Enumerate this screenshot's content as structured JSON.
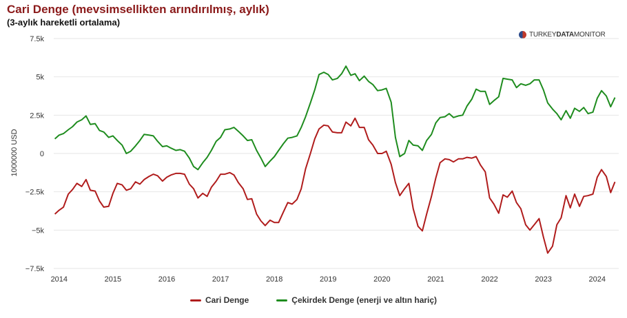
{
  "header": {
    "title": "Cari Denge (mevsimsellikten arındırılmış, aylık)",
    "subtitle": "(3-aylık hareketli ortalama)",
    "brand_prefix": "TURKEY",
    "brand_mid": "DATA",
    "brand_suffix": "MONITOR"
  },
  "chart_data": {
    "type": "line",
    "ylabel": "1000000 USD",
    "ylim": [
      -7500,
      7500
    ],
    "yticks": [
      -7500,
      -5000,
      -2500,
      0,
      2500,
      5000,
      7500
    ],
    "ytick_labels": [
      "−7.5k",
      "−5k",
      "−2.5k",
      "0",
      "2.5k",
      "5k",
      "7.5k"
    ],
    "xlim": [
      2013.9,
      2024.4
    ],
    "xticks": [
      2014,
      2015,
      2016,
      2017,
      2018,
      2019,
      2020,
      2021,
      2022,
      2023,
      2024
    ],
    "xtick_labels": [
      "2014",
      "2015",
      "2016",
      "2017",
      "2018",
      "2019",
      "2020",
      "2021",
      "2022",
      "2023",
      "2024"
    ],
    "grid": "horizontal",
    "legend_position": "bottom-center",
    "series": [
      {
        "name": "Cari Denge",
        "color": "#b01c1c",
        "points": [
          [
            2013.92,
            -3950
          ],
          [
            2014.0,
            -3700
          ],
          [
            2014.08,
            -3500
          ],
          [
            2014.17,
            -2650
          ],
          [
            2014.25,
            -2350
          ],
          [
            2014.33,
            -1950
          ],
          [
            2014.42,
            -2150
          ],
          [
            2014.5,
            -1700
          ],
          [
            2014.58,
            -2400
          ],
          [
            2014.67,
            -2450
          ],
          [
            2014.75,
            -3100
          ],
          [
            2014.83,
            -3500
          ],
          [
            2014.92,
            -3450
          ],
          [
            2015.0,
            -2600
          ],
          [
            2015.08,
            -1950
          ],
          [
            2015.17,
            -2050
          ],
          [
            2015.25,
            -2400
          ],
          [
            2015.33,
            -2300
          ],
          [
            2015.42,
            -1850
          ],
          [
            2015.5,
            -2000
          ],
          [
            2015.58,
            -1700
          ],
          [
            2015.67,
            -1500
          ],
          [
            2015.75,
            -1350
          ],
          [
            2015.83,
            -1450
          ],
          [
            2015.92,
            -1800
          ],
          [
            2016.0,
            -1550
          ],
          [
            2016.08,
            -1400
          ],
          [
            2016.17,
            -1300
          ],
          [
            2016.25,
            -1300
          ],
          [
            2016.33,
            -1350
          ],
          [
            2016.42,
            -2000
          ],
          [
            2016.5,
            -2300
          ],
          [
            2016.58,
            -2900
          ],
          [
            2016.67,
            -2600
          ],
          [
            2016.75,
            -2800
          ],
          [
            2016.83,
            -2200
          ],
          [
            2016.92,
            -1800
          ],
          [
            2017.0,
            -1350
          ],
          [
            2017.08,
            -1350
          ],
          [
            2017.17,
            -1250
          ],
          [
            2017.25,
            -1400
          ],
          [
            2017.33,
            -1900
          ],
          [
            2017.42,
            -2300
          ],
          [
            2017.5,
            -3000
          ],
          [
            2017.58,
            -2950
          ],
          [
            2017.67,
            -3950
          ],
          [
            2017.75,
            -4400
          ],
          [
            2017.83,
            -4700
          ],
          [
            2017.92,
            -4350
          ],
          [
            2018.0,
            -4500
          ],
          [
            2018.08,
            -4500
          ],
          [
            2018.17,
            -3800
          ],
          [
            2018.25,
            -3200
          ],
          [
            2018.33,
            -3300
          ],
          [
            2018.42,
            -3000
          ],
          [
            2018.5,
            -2300
          ],
          [
            2018.58,
            -1000
          ],
          [
            2018.67,
            0
          ],
          [
            2018.75,
            950
          ],
          [
            2018.83,
            1600
          ],
          [
            2018.92,
            1850
          ],
          [
            2019.0,
            1800
          ],
          [
            2019.08,
            1400
          ],
          [
            2019.17,
            1350
          ],
          [
            2019.25,
            1350
          ],
          [
            2019.33,
            2050
          ],
          [
            2019.42,
            1800
          ],
          [
            2019.5,
            2300
          ],
          [
            2019.58,
            1700
          ],
          [
            2019.67,
            1700
          ],
          [
            2019.75,
            900
          ],
          [
            2019.83,
            550
          ],
          [
            2019.92,
            0
          ],
          [
            2020.0,
            0
          ],
          [
            2020.08,
            150
          ],
          [
            2020.17,
            -700
          ],
          [
            2020.25,
            -1900
          ],
          [
            2020.33,
            -2750
          ],
          [
            2020.42,
            -2300
          ],
          [
            2020.5,
            -1950
          ],
          [
            2020.58,
            -3600
          ],
          [
            2020.67,
            -4750
          ],
          [
            2020.75,
            -5050
          ],
          [
            2020.83,
            -3950
          ],
          [
            2020.92,
            -2800
          ],
          [
            2021.0,
            -1600
          ],
          [
            2021.08,
            -600
          ],
          [
            2021.17,
            -350
          ],
          [
            2021.25,
            -400
          ],
          [
            2021.33,
            -550
          ],
          [
            2021.42,
            -350
          ],
          [
            2021.5,
            -350
          ],
          [
            2021.58,
            -250
          ],
          [
            2021.67,
            -300
          ],
          [
            2021.75,
            -200
          ],
          [
            2021.83,
            -750
          ],
          [
            2021.92,
            -1200
          ],
          [
            2022.0,
            -2900
          ],
          [
            2022.08,
            -3300
          ],
          [
            2022.17,
            -3900
          ],
          [
            2022.25,
            -2700
          ],
          [
            2022.33,
            -2850
          ],
          [
            2022.42,
            -2450
          ],
          [
            2022.5,
            -3200
          ],
          [
            2022.58,
            -3600
          ],
          [
            2022.67,
            -4650
          ],
          [
            2022.75,
            -5000
          ],
          [
            2022.83,
            -4650
          ],
          [
            2022.92,
            -4250
          ],
          [
            2023.0,
            -5450
          ],
          [
            2023.08,
            -6500
          ],
          [
            2023.17,
            -6050
          ],
          [
            2023.25,
            -4650
          ],
          [
            2023.33,
            -4200
          ],
          [
            2023.42,
            -2750
          ],
          [
            2023.5,
            -3550
          ],
          [
            2023.58,
            -2650
          ],
          [
            2023.67,
            -3450
          ],
          [
            2023.75,
            -2800
          ],
          [
            2023.83,
            -2750
          ],
          [
            2023.92,
            -2650
          ],
          [
            2024.0,
            -1550
          ],
          [
            2024.08,
            -1050
          ],
          [
            2024.17,
            -1500
          ],
          [
            2024.25,
            -2550
          ],
          [
            2024.33,
            -1850
          ]
        ]
      },
      {
        "name": "Çekirdek Denge (enerji ve altın hariç)",
        "color": "#1e8c1e",
        "points": [
          [
            2013.92,
            950
          ],
          [
            2014.0,
            1200
          ],
          [
            2014.08,
            1300
          ],
          [
            2014.17,
            1550
          ],
          [
            2014.25,
            1750
          ],
          [
            2014.33,
            2050
          ],
          [
            2014.42,
            2200
          ],
          [
            2014.5,
            2450
          ],
          [
            2014.58,
            1900
          ],
          [
            2014.67,
            1950
          ],
          [
            2014.75,
            1500
          ],
          [
            2014.83,
            1400
          ],
          [
            2014.92,
            1050
          ],
          [
            2015.0,
            1150
          ],
          [
            2015.08,
            850
          ],
          [
            2015.17,
            550
          ],
          [
            2015.25,
            0
          ],
          [
            2015.33,
            150
          ],
          [
            2015.42,
            500
          ],
          [
            2015.5,
            850
          ],
          [
            2015.58,
            1250
          ],
          [
            2015.67,
            1200
          ],
          [
            2015.75,
            1150
          ],
          [
            2015.83,
            800
          ],
          [
            2015.92,
            450
          ],
          [
            2016.0,
            500
          ],
          [
            2016.08,
            350
          ],
          [
            2016.17,
            200
          ],
          [
            2016.25,
            250
          ],
          [
            2016.33,
            150
          ],
          [
            2016.42,
            -300
          ],
          [
            2016.5,
            -850
          ],
          [
            2016.58,
            -1050
          ],
          [
            2016.67,
            -600
          ],
          [
            2016.75,
            -250
          ],
          [
            2016.83,
            200
          ],
          [
            2016.92,
            800
          ],
          [
            2017.0,
            1050
          ],
          [
            2017.08,
            1550
          ],
          [
            2017.17,
            1600
          ],
          [
            2017.25,
            1700
          ],
          [
            2017.33,
            1450
          ],
          [
            2017.42,
            1150
          ],
          [
            2017.5,
            850
          ],
          [
            2017.58,
            900
          ],
          [
            2017.67,
            200
          ],
          [
            2017.75,
            -300
          ],
          [
            2017.83,
            -850
          ],
          [
            2017.92,
            -500
          ],
          [
            2018.0,
            -200
          ],
          [
            2018.08,
            200
          ],
          [
            2018.17,
            650
          ],
          [
            2018.25,
            1000
          ],
          [
            2018.33,
            1050
          ],
          [
            2018.42,
            1150
          ],
          [
            2018.5,
            1700
          ],
          [
            2018.58,
            2400
          ],
          [
            2018.67,
            3300
          ],
          [
            2018.75,
            4150
          ],
          [
            2018.83,
            5150
          ],
          [
            2018.92,
            5300
          ],
          [
            2019.0,
            5150
          ],
          [
            2019.08,
            4800
          ],
          [
            2019.17,
            4900
          ],
          [
            2019.25,
            5200
          ],
          [
            2019.33,
            5700
          ],
          [
            2019.42,
            5100
          ],
          [
            2019.5,
            5200
          ],
          [
            2019.58,
            4750
          ],
          [
            2019.67,
            5050
          ],
          [
            2019.75,
            4700
          ],
          [
            2019.83,
            4500
          ],
          [
            2019.92,
            4100
          ],
          [
            2020.0,
            4150
          ],
          [
            2020.08,
            4250
          ],
          [
            2020.17,
            3350
          ],
          [
            2020.25,
            1050
          ],
          [
            2020.33,
            -200
          ],
          [
            2020.42,
            0
          ],
          [
            2020.5,
            850
          ],
          [
            2020.58,
            550
          ],
          [
            2020.67,
            500
          ],
          [
            2020.75,
            200
          ],
          [
            2020.83,
            850
          ],
          [
            2020.92,
            1250
          ],
          [
            2021.0,
            2000
          ],
          [
            2021.08,
            2350
          ],
          [
            2021.17,
            2400
          ],
          [
            2021.25,
            2600
          ],
          [
            2021.33,
            2350
          ],
          [
            2021.42,
            2450
          ],
          [
            2021.5,
            2500
          ],
          [
            2021.58,
            3100
          ],
          [
            2021.67,
            3550
          ],
          [
            2021.75,
            4200
          ],
          [
            2021.83,
            4050
          ],
          [
            2021.92,
            4050
          ],
          [
            2022.0,
            3200
          ],
          [
            2022.08,
            3450
          ],
          [
            2022.17,
            3700
          ],
          [
            2022.25,
            4900
          ],
          [
            2022.33,
            4850
          ],
          [
            2022.42,
            4800
          ],
          [
            2022.5,
            4300
          ],
          [
            2022.58,
            4550
          ],
          [
            2022.67,
            4450
          ],
          [
            2022.75,
            4550
          ],
          [
            2022.83,
            4800
          ],
          [
            2022.92,
            4800
          ],
          [
            2023.0,
            4150
          ],
          [
            2023.08,
            3300
          ],
          [
            2023.17,
            2900
          ],
          [
            2023.25,
            2600
          ],
          [
            2023.33,
            2200
          ],
          [
            2023.42,
            2800
          ],
          [
            2023.5,
            2300
          ],
          [
            2023.58,
            2950
          ],
          [
            2023.67,
            2750
          ],
          [
            2023.75,
            3000
          ],
          [
            2023.83,
            2600
          ],
          [
            2023.92,
            2700
          ],
          [
            2024.0,
            3600
          ],
          [
            2024.08,
            4100
          ],
          [
            2024.17,
            3750
          ],
          [
            2024.25,
            3050
          ],
          [
            2024.33,
            3650
          ]
        ]
      }
    ]
  }
}
